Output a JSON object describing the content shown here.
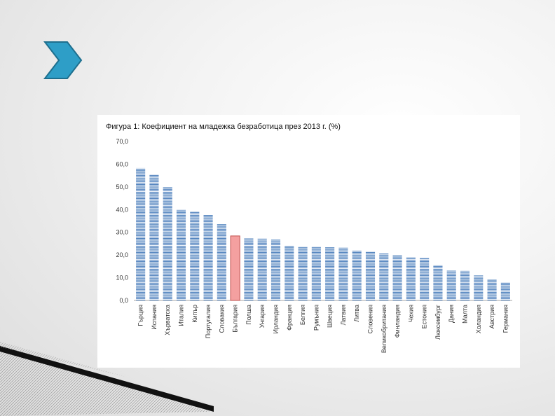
{
  "colors": {
    "bar": "#4f81bd",
    "bar_stripe": "#ffffff",
    "highlight_fill": "#f4a0a0",
    "highlight_stroke": "#c0504d",
    "chevron": "#2e9ec7",
    "chevron_stroke": "#1e6f8e"
  },
  "icons": {
    "chevron": "chevron-right-icon"
  },
  "chart_data": {
    "type": "bar",
    "title": "Фигура 1: Коефициент на младежка безработица през 2013 г. (%)",
    "xlabel": "",
    "ylabel": "",
    "ylim": [
      0,
      70
    ],
    "yticks": [
      "0,0",
      "10,0",
      "20,0",
      "30,0",
      "40,0",
      "50,0",
      "60,0",
      "70,0"
    ],
    "grid": false,
    "legend": "none",
    "highlight_category": "България",
    "categories": [
      "Гърция",
      "Испания",
      "Хърватска",
      "Италия",
      "Кипър",
      "Португалия",
      "Словакия",
      "България",
      "Полша",
      "Унгария",
      "Ирландия",
      "Франция",
      "Белгия",
      "Румъния",
      "Швеция",
      "Латвия",
      "Литва",
      "Словения",
      "Великобритания",
      "Финландия",
      "Чехия",
      "Естония",
      "Люксембург",
      "Дания",
      "Малта",
      "Холандия",
      "Австрия",
      "Германия"
    ],
    "values": [
      58.3,
      55.5,
      50.0,
      40.0,
      39.0,
      37.7,
      33.7,
      28.4,
      27.3,
      27.2,
      26.8,
      24.0,
      23.7,
      23.7,
      23.6,
      23.2,
      21.9,
      21.6,
      20.7,
      19.9,
      19.0,
      18.7,
      15.5,
      13.1,
      13.0,
      11.0,
      9.2,
      7.9
    ]
  }
}
